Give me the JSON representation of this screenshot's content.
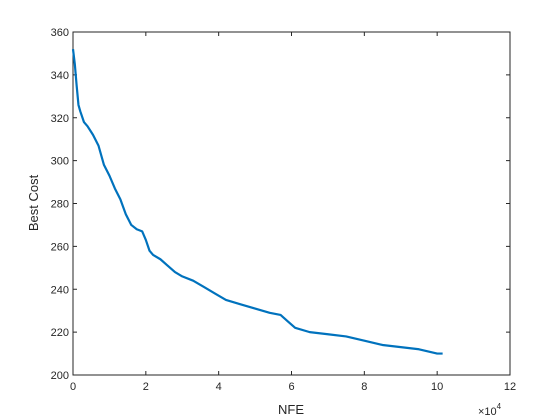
{
  "chart_data": {
    "type": "line",
    "title": "",
    "xlabel": "NFE",
    "ylabel": "Best Cost",
    "x_exponent_label": "×10",
    "x_exponent_power": "4",
    "xlim": [
      0,
      12
    ],
    "ylim": [
      200,
      360
    ],
    "x_ticks": [
      "0",
      "2",
      "4",
      "6",
      "8",
      "10",
      "12"
    ],
    "y_ticks": [
      "200",
      "220",
      "240",
      "260",
      "280",
      "300",
      "320",
      "340",
      "360"
    ],
    "grid": false,
    "legend": "none",
    "line_color": "#0072BD",
    "axis_color": "#262626",
    "series": [
      {
        "x": [
          0.0,
          0.05,
          0.1,
          0.15,
          0.2,
          0.3,
          0.4,
          0.55,
          0.7,
          0.85,
          1.0,
          1.15,
          1.3,
          1.45,
          1.6,
          1.75,
          1.9,
          2.0,
          2.1,
          2.2,
          2.4,
          2.6,
          2.8,
          3.0,
          3.3,
          3.6,
          3.9,
          4.2,
          4.6,
          5.0,
          5.2,
          5.4,
          5.7,
          5.9,
          6.1,
          6.5,
          7.0,
          7.5,
          8.0,
          8.5,
          9.0,
          9.5,
          10.0,
          10.15
        ],
        "y": [
          352,
          345,
          335,
          326,
          323,
          318,
          316,
          312,
          307,
          298,
          293,
          287,
          282,
          275,
          270,
          268,
          267,
          263,
          258,
          256,
          254,
          251,
          248,
          246,
          244,
          241,
          238,
          235,
          233,
          231,
          230,
          229,
          228,
          225,
          222,
          220,
          219,
          218,
          216,
          214,
          213,
          212,
          210,
          210
        ]
      }
    ]
  }
}
